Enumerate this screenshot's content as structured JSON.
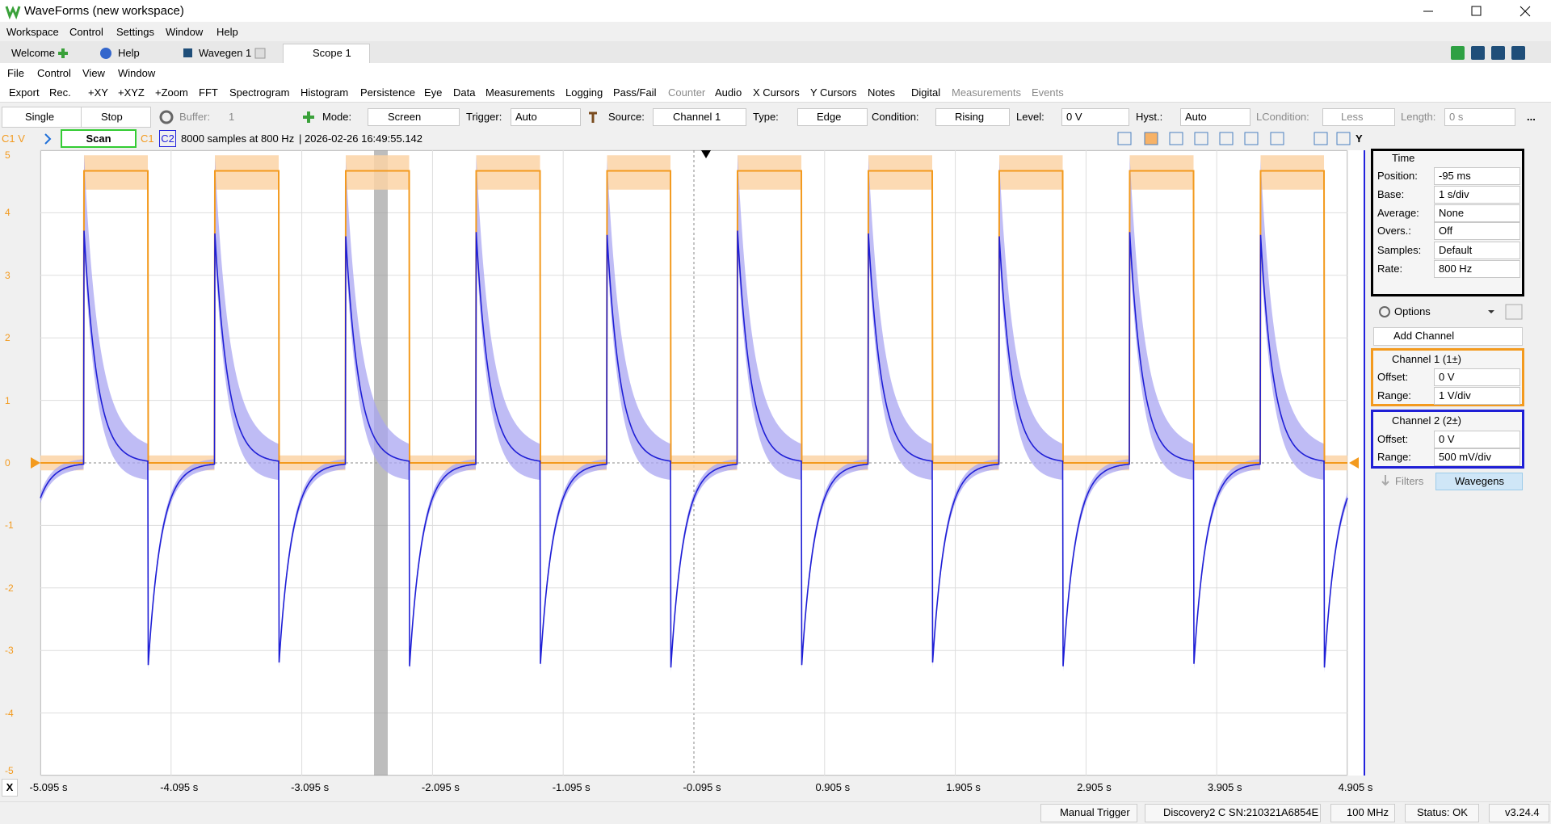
{
  "window": {
    "title": "WaveForms (new workspace)"
  },
  "main_menu": [
    "Workspace",
    "Control",
    "Settings",
    "Window",
    "Help"
  ],
  "tabs": [
    "Welcome",
    "Help",
    "Wavegen 1",
    "Scope 1"
  ],
  "scope_menu": [
    "File",
    "Control",
    "View",
    "Window"
  ],
  "toolbar": [
    "Export",
    "Rec.",
    "+XY",
    "+XYZ",
    "+Zoom",
    "FFT",
    "Spectrogram",
    "Histogram",
    "Persistence",
    "Eye",
    "Data",
    "Measurements",
    "Logging",
    "Pass/Fail",
    "Counter",
    "Audio",
    "X Cursors",
    "Y Cursors",
    "Notes",
    "Digital",
    "Measurements",
    "Events"
  ],
  "acquisition": {
    "single": "Single",
    "stop": "Stop",
    "buffer_label": "Buffer:",
    "buffer": "1",
    "mode_label": "Mode:",
    "mode": "Screen"
  },
  "trigger": {
    "trigger_label": "Trigger:",
    "trigger": "Auto",
    "source_label": "Source:",
    "source": "Channel 1",
    "type_label": "Type:",
    "type": "Edge",
    "condition_label": "Condition:",
    "condition": "Rising",
    "level_label": "Level:",
    "level": "0 V",
    "hyst_label": "Hyst.:",
    "hyst": "Auto",
    "lcondition_label": "LCondition:",
    "lcondition": "Less",
    "length_label": "Length:",
    "length": "0 s",
    "more": "..."
  },
  "plot_header": {
    "unit": "C1 V",
    "state": "Scan",
    "c1": "C1",
    "c2": "C2",
    "info": "8000 samples at 800 Hz",
    "timestamp": "| 2026-02-26 16:49:55.142",
    "y_button": "Y"
  },
  "plot": {
    "y_labels": [
      "5",
      "4",
      "3",
      "2",
      "1",
      "0",
      "-1",
      "-2",
      "-3",
      "-4",
      "-5"
    ],
    "x_labels": [
      "-5.095 s",
      "-4.095 s",
      "-3.095 s",
      "-2.095 s",
      "-1.095 s",
      "-0.095 s",
      "0.905 s",
      "1.905 s",
      "2.905 s",
      "3.905 s",
      "4.905 s"
    ],
    "x_button": "X"
  },
  "panel": {
    "time": {
      "title": "Time",
      "rows": [
        [
          "Position:",
          "-95 ms"
        ],
        [
          "Base:",
          "1 s/div"
        ],
        [
          "Average:",
          "None"
        ],
        [
          "Overs.:",
          "Off"
        ],
        [
          "Samples:",
          "Default"
        ],
        [
          "Rate:",
          "800 Hz"
        ]
      ]
    },
    "options": "Options",
    "add_channel": "Add Channel",
    "channels": [
      {
        "title": "Channel 1 (1±)",
        "rows": [
          [
            "Offset:",
            "0 V"
          ],
          [
            "Range:",
            "1 V/div"
          ]
        ]
      },
      {
        "title": "Channel 2 (2±)",
        "rows": [
          [
            "Offset:",
            "0 V"
          ],
          [
            "Range:",
            "500 mV/div"
          ]
        ]
      }
    ],
    "tabs": [
      "Filters",
      "Wavegens"
    ]
  },
  "statusbar": [
    "Manual Trigger",
    "Discovery2 C SN:210321A6854E",
    "100 MHz",
    "Status: OK",
    "v3.24.4"
  ]
}
